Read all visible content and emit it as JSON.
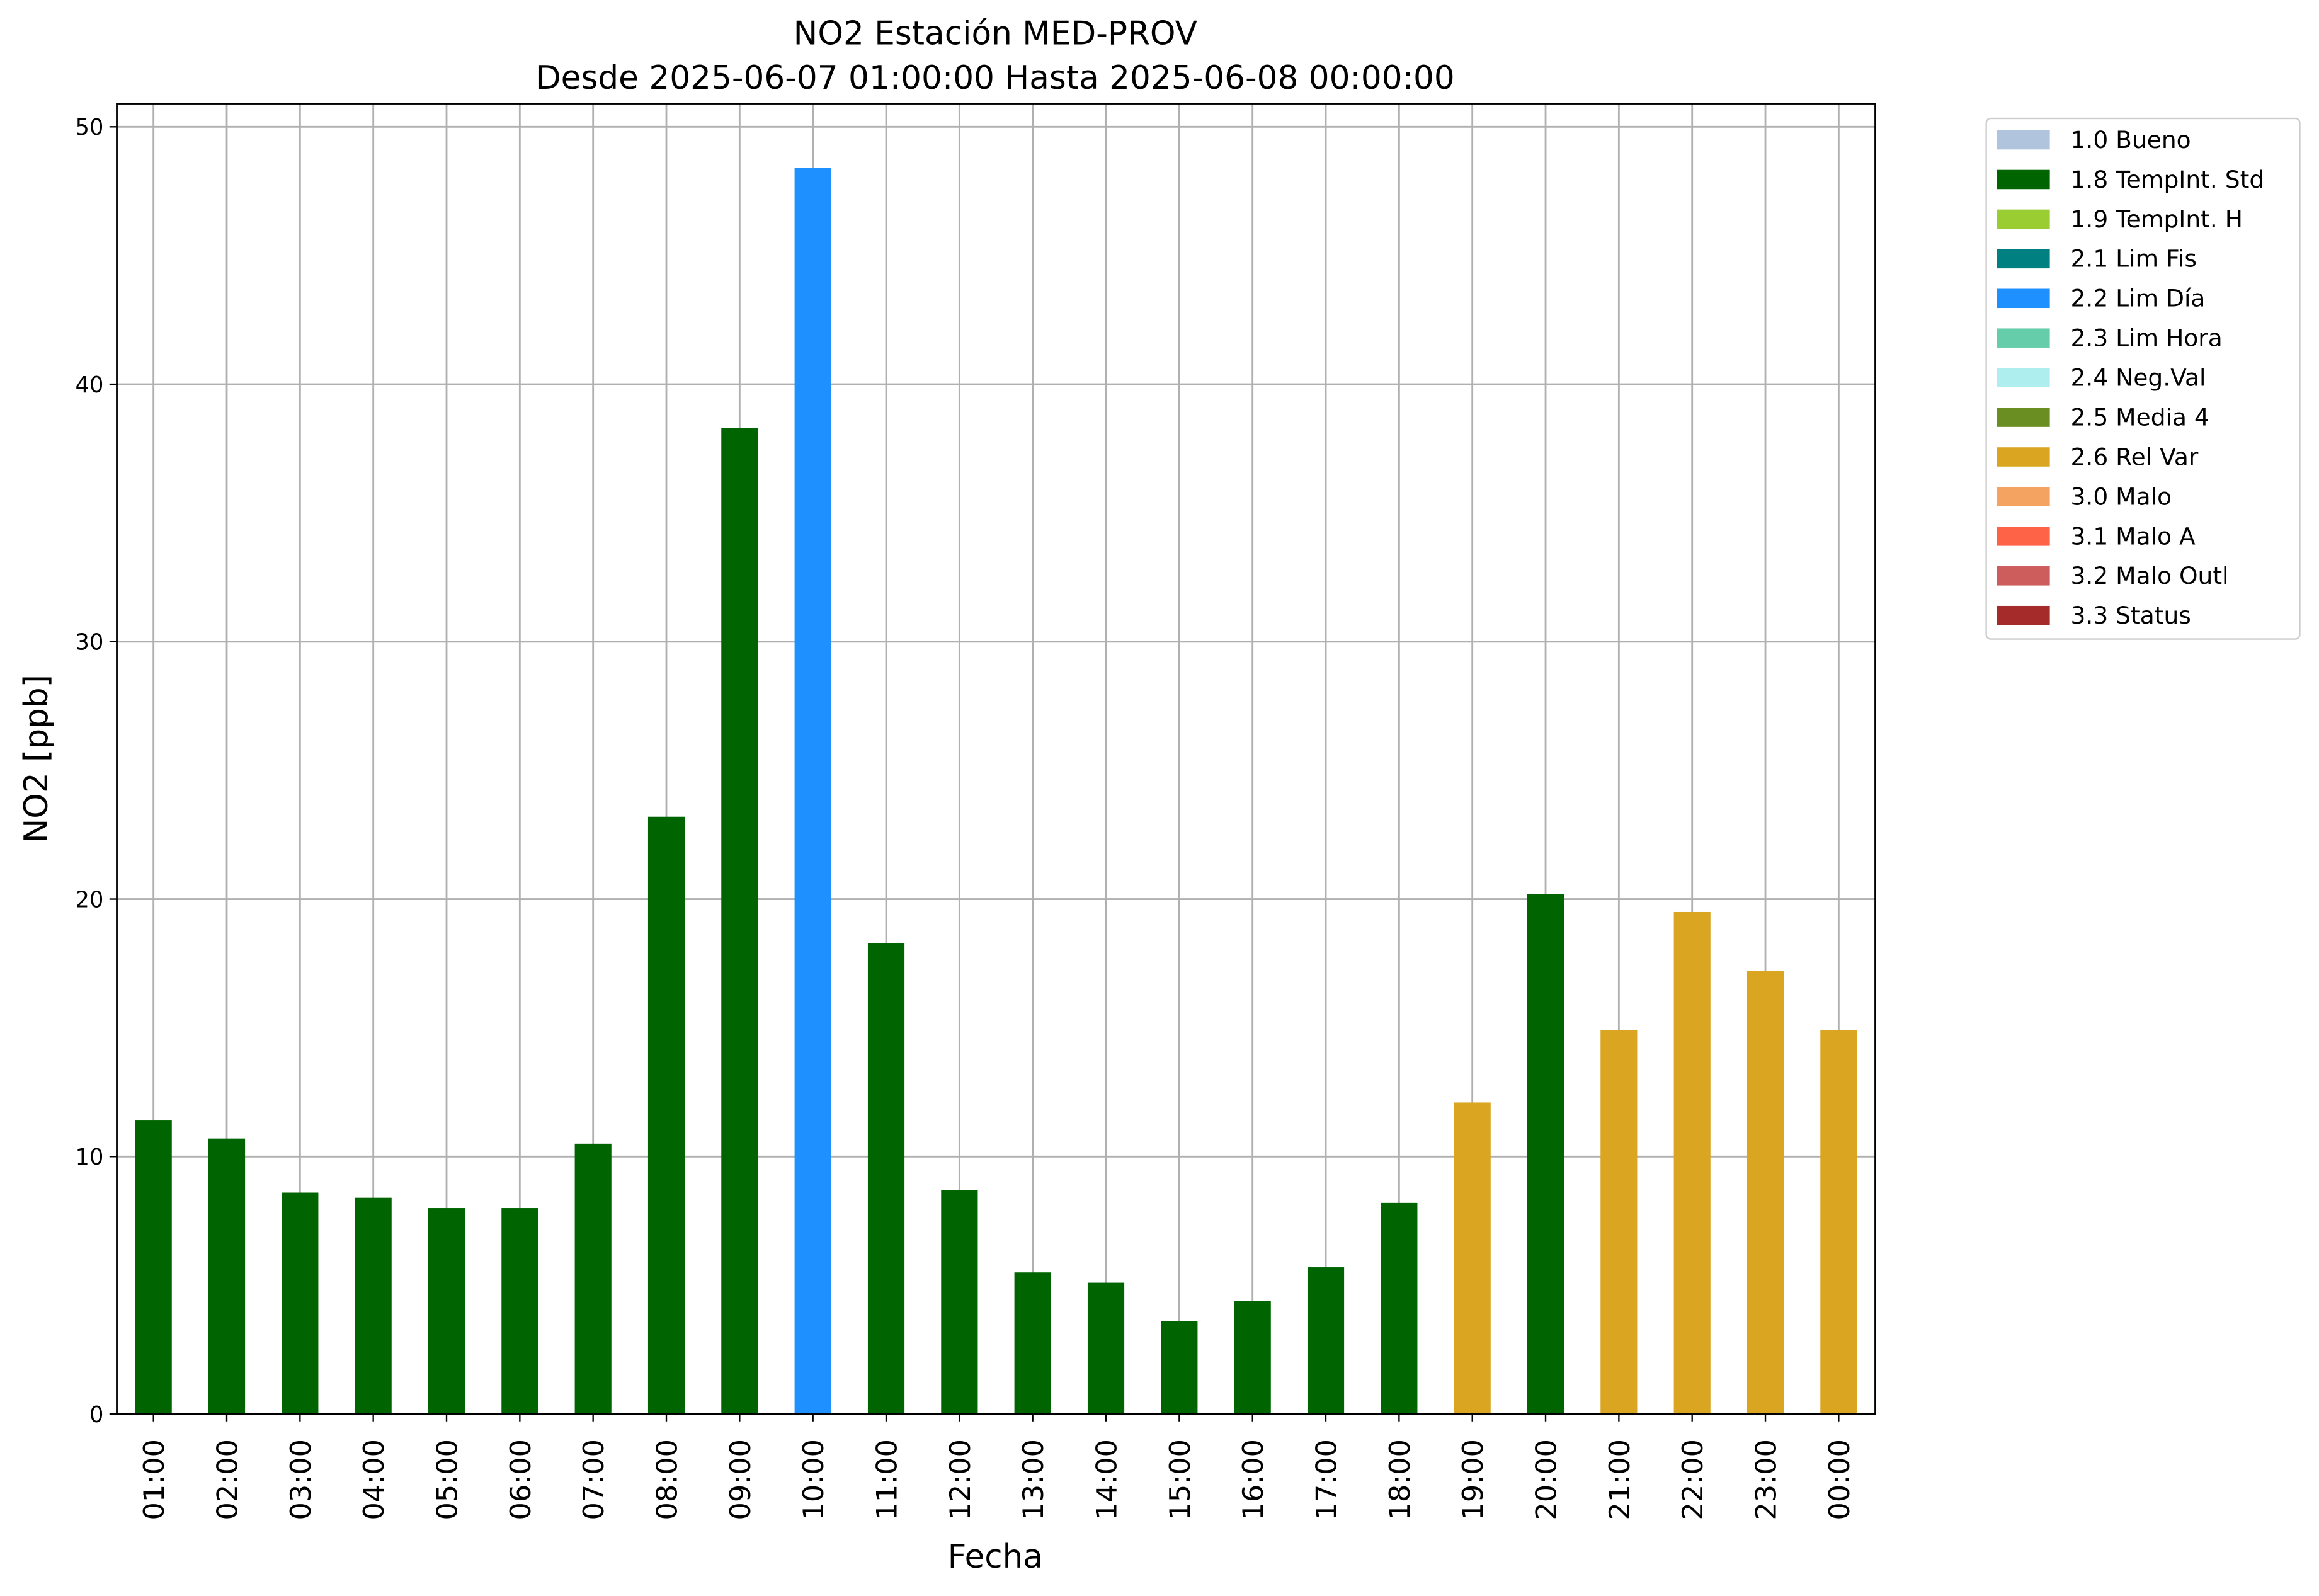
{
  "chart_data": {
    "type": "bar",
    "title": "NO2 Estación MED-PROV",
    "subtitle": "Desde 2025-06-07 01:00:00 Hasta 2025-06-08 00:00:00",
    "x_label": "Fecha",
    "y_label": "NO2 [ppb]",
    "categories": [
      "01:00",
      "02:00",
      "03:00",
      "04:00",
      "05:00",
      "06:00",
      "07:00",
      "08:00",
      "09:00",
      "10:00",
      "11:00",
      "12:00",
      "13:00",
      "14:00",
      "15:00",
      "16:00",
      "17:00",
      "18:00",
      "19:00",
      "20:00",
      "21:00",
      "22:00",
      "23:00",
      "00:00"
    ],
    "series": [
      {
        "name": "1.0 Bueno",
        "color": "#b0c4de",
        "values": [
          null,
          null,
          null,
          null,
          null,
          null,
          null,
          null,
          null,
          null,
          null,
          null,
          null,
          null,
          null,
          null,
          null,
          null,
          null,
          null,
          null,
          null,
          null,
          null
        ]
      },
      {
        "name": "1.8 TempInt. Std",
        "color": "#006400",
        "values": [
          11.4,
          10.7,
          8.6,
          8.4,
          8.0,
          8.0,
          10.5,
          23.2,
          38.3,
          null,
          18.3,
          8.7,
          5.5,
          5.1,
          3.6,
          4.4,
          5.7,
          8.2,
          null,
          20.2,
          null,
          null,
          null,
          null
        ]
      },
      {
        "name": "1.9 TempInt. H",
        "color": "#9acd32",
        "values": [
          null,
          null,
          null,
          null,
          null,
          null,
          null,
          null,
          null,
          null,
          null,
          null,
          null,
          null,
          null,
          null,
          null,
          null,
          null,
          null,
          null,
          null,
          null,
          null
        ]
      },
      {
        "name": "2.1 Lim Fis",
        "color": "#008080",
        "values": [
          null,
          null,
          null,
          null,
          null,
          null,
          null,
          null,
          null,
          null,
          null,
          null,
          null,
          null,
          null,
          null,
          null,
          null,
          null,
          null,
          null,
          null,
          null,
          null
        ]
      },
      {
        "name": "2.2 Lim Día",
        "color": "#1e90ff",
        "values": [
          null,
          null,
          null,
          null,
          null,
          null,
          null,
          null,
          null,
          48.4,
          null,
          null,
          null,
          null,
          null,
          null,
          null,
          null,
          null,
          null,
          null,
          null,
          null,
          null
        ]
      },
      {
        "name": "2.3 Lim Hora",
        "color": "#66cdaa",
        "values": [
          null,
          null,
          null,
          null,
          null,
          null,
          null,
          null,
          null,
          null,
          null,
          null,
          null,
          null,
          null,
          null,
          null,
          null,
          null,
          null,
          null,
          null,
          null,
          null
        ]
      },
      {
        "name": "2.4 Neg.Val",
        "color": "#afeeee",
        "values": [
          null,
          null,
          null,
          null,
          null,
          null,
          null,
          null,
          null,
          null,
          null,
          null,
          null,
          null,
          null,
          null,
          null,
          null,
          null,
          null,
          null,
          null,
          null,
          null
        ]
      },
      {
        "name": "2.5 Media 4",
        "color": "#6b8e23",
        "values": [
          null,
          null,
          null,
          null,
          null,
          null,
          null,
          null,
          null,
          null,
          null,
          null,
          null,
          null,
          null,
          null,
          null,
          null,
          null,
          null,
          null,
          null,
          null,
          null
        ]
      },
      {
        "name": "2.6 Rel Var",
        "color": "#daa520",
        "values": [
          null,
          null,
          null,
          null,
          null,
          null,
          null,
          null,
          null,
          null,
          null,
          null,
          null,
          null,
          null,
          null,
          null,
          null,
          12.1,
          null,
          14.9,
          19.5,
          17.2,
          14.9
        ]
      },
      {
        "name": "3.0 Malo",
        "color": "#f4a460",
        "values": [
          null,
          null,
          null,
          null,
          null,
          null,
          null,
          null,
          null,
          null,
          null,
          null,
          null,
          null,
          null,
          null,
          null,
          null,
          null,
          null,
          null,
          null,
          null,
          null
        ]
      },
      {
        "name": "3.1 Malo A",
        "color": "#ff6347",
        "values": [
          null,
          null,
          null,
          null,
          null,
          null,
          null,
          null,
          null,
          null,
          null,
          null,
          null,
          null,
          null,
          null,
          null,
          null,
          null,
          null,
          null,
          null,
          null,
          null
        ]
      },
      {
        "name": "3.2 Malo Outl",
        "color": "#cd5c5c",
        "values": [
          null,
          null,
          null,
          null,
          null,
          null,
          null,
          null,
          null,
          null,
          null,
          null,
          null,
          null,
          null,
          null,
          null,
          null,
          null,
          null,
          null,
          null,
          null,
          null
        ]
      },
      {
        "name": "3.3 Status",
        "color": "#a52a2a",
        "values": [
          null,
          null,
          null,
          null,
          null,
          null,
          null,
          null,
          null,
          null,
          null,
          null,
          null,
          null,
          null,
          null,
          null,
          null,
          null,
          null,
          null,
          null,
          null,
          null
        ]
      }
    ],
    "ylim": [
      0,
      50.9
    ],
    "yticks": [
      0,
      10,
      20,
      30,
      40,
      50
    ],
    "grid": true,
    "legend": "outside-right"
  }
}
